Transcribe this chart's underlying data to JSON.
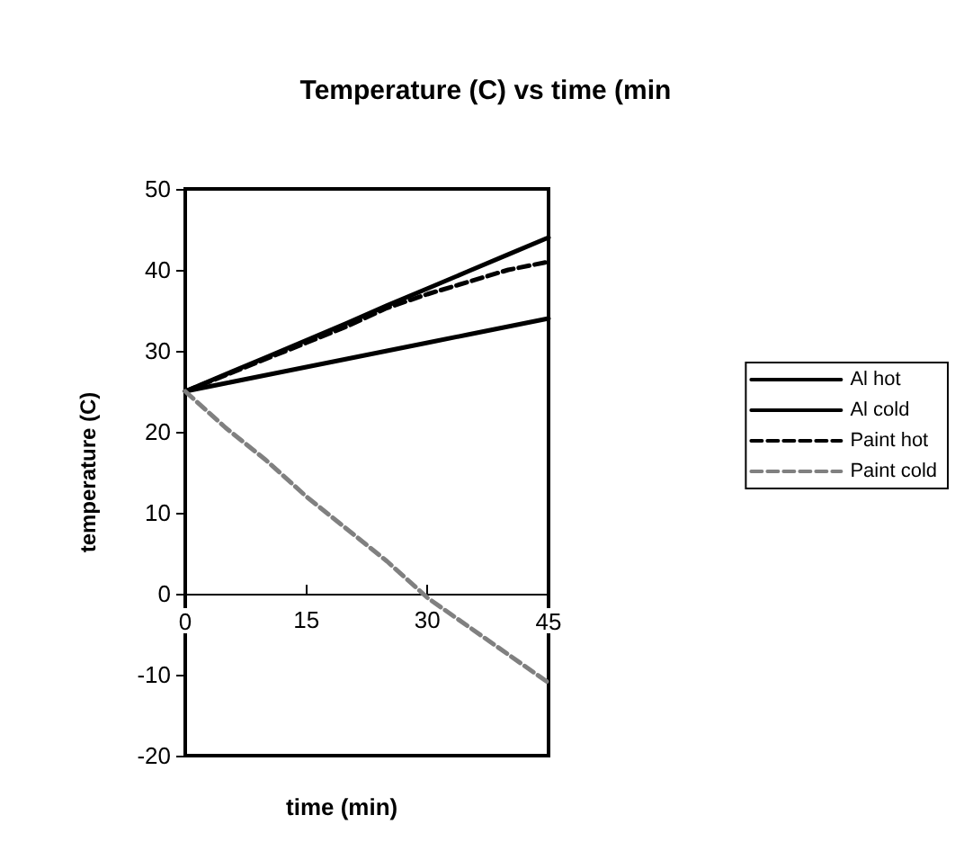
{
  "chart_data": {
    "type": "line",
    "title": "Temperature (C) vs time (min",
    "xlabel": "time (min)",
    "ylabel": "temperature (C)",
    "x": [
      0,
      5,
      10,
      15,
      20,
      25,
      30,
      35,
      40,
      45
    ],
    "series": [
      {
        "name": "Al hot",
        "color": "#000000",
        "line_style": "solid",
        "values": [
          25,
          27.1,
          29.2,
          31.3,
          33.4,
          35.6,
          37.7,
          39.8,
          41.9,
          44
        ]
      },
      {
        "name": "Al cold",
        "color": "#000000",
        "line_style": "solid",
        "values": [
          25,
          26,
          27,
          28,
          29,
          30,
          31,
          32,
          33,
          34
        ]
      },
      {
        "name": "Paint hot",
        "color": "#000000",
        "line_style": "dashed",
        "values": [
          25,
          27,
          29,
          31,
          33,
          35.3,
          37,
          38.5,
          40,
          41
        ]
      },
      {
        "name": "Paint cold",
        "color": "#808080",
        "line_style": "dashed",
        "values": [
          25,
          20.5,
          16.5,
          12,
          8,
          4,
          -0.5,
          -4,
          -7.5,
          -11
        ]
      }
    ],
    "xlim": [
      0,
      45
    ],
    "xticks": [
      0,
      15,
      30,
      45
    ],
    "ylim": [
      -20,
      50
    ],
    "yticks": [
      -20,
      -10,
      0,
      10,
      20,
      30,
      40,
      50
    ],
    "legend": "right",
    "marker": "none"
  }
}
